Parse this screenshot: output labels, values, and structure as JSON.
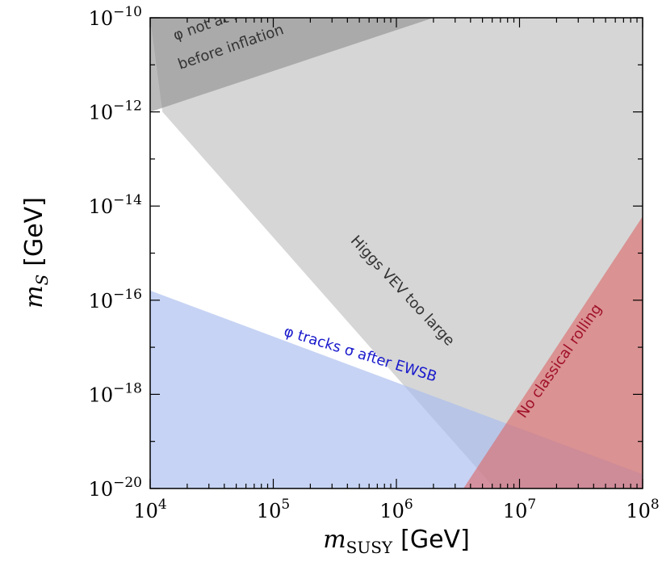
{
  "chart_data": {
    "type": "area",
    "xscale": "log",
    "yscale": "log",
    "xlim": [
      10000,
      100000000
    ],
    "ylim": [
      1e-20,
      1e-10
    ],
    "xlabel": {
      "var": "m",
      "sub": "SUSY",
      "unit": "[GeV]"
    },
    "ylabel": {
      "var": "m",
      "sub": "S",
      "unit": "[GeV]"
    },
    "x_ticks": [
      {
        "value": 10000,
        "base": "10",
        "exp": "4"
      },
      {
        "value": 100000,
        "base": "10",
        "exp": "5"
      },
      {
        "value": 1000000,
        "base": "10",
        "exp": "6"
      },
      {
        "value": 10000000,
        "base": "10",
        "exp": "7"
      },
      {
        "value": 100000000,
        "base": "10",
        "exp": "8"
      }
    ],
    "y_ticks": [
      {
        "value": 1e-20,
        "base": "10",
        "exp": "−20"
      },
      {
        "value": 1e-18,
        "base": "10",
        "exp": "−18"
      },
      {
        "value": 1e-16,
        "base": "10",
        "exp": "−16"
      },
      {
        "value": 1e-14,
        "base": "10",
        "exp": "−14"
      },
      {
        "value": 1e-12,
        "base": "10",
        "exp": "−12"
      },
      {
        "value": 1e-10,
        "base": "10",
        "exp": "−10"
      }
    ],
    "grid": false,
    "regions": [
      {
        "name": "Higgs VEV too large",
        "color": "#cccccc",
        "opacity": 0.8,
        "polygon": [
          [
            10000,
            1e-10
          ],
          [
            100000000,
            1e-10
          ],
          [
            100000000,
            1e-20
          ],
          [
            6300000,
            1e-20
          ],
          [
            12600,
            1e-12
          ]
        ]
      },
      {
        "name": "φ not at rest before inflation",
        "color": "#8c8c8c",
        "opacity": 0.6,
        "polygon": [
          [
            10000,
            1e-10
          ],
          [
            2000000,
            1e-10
          ],
          [
            10000,
            1e-12
          ]
        ]
      },
      {
        "name": "φ tracks σ after EWSB",
        "color": "#a7bcee",
        "opacity": 0.65,
        "polygon": [
          [
            10000,
            1.6e-16
          ],
          [
            100000000,
            2e-20
          ],
          [
            100000000,
            1e-20
          ],
          [
            10000,
            1e-20
          ]
        ]
      },
      {
        "name": "No classical rolling",
        "color": "#dc6464",
        "opacity": 0.6,
        "polygon": [
          [
            3500000,
            1e-20
          ],
          [
            100000000,
            6e-15
          ],
          [
            100000000,
            1e-20
          ]
        ]
      }
    ],
    "annotations": [
      {
        "key": "not_at_rest_1",
        "text": "φ not at rest",
        "x": 16000,
        "y": 3.3e-11,
        "angle": -19,
        "color": "#333333"
      },
      {
        "key": "not_at_rest_2",
        "text": "before inflation",
        "x": 17500,
        "y": 8e-12,
        "angle": -19,
        "color": "#333333"
      },
      {
        "key": "higgs_vev",
        "text": "Higgs VEV too large",
        "x": 420000,
        "y": 1.8e-15,
        "angle": 47,
        "color": "#333333"
      },
      {
        "key": "tracks",
        "text": "φ tracks σ after EWSB",
        "x": 120000,
        "y": 1.8e-17,
        "angle": 17,
        "color": "#1a1acc"
      },
      {
        "key": "no_classical",
        "text": "No classical rolling",
        "x": 11000000,
        "y": 3e-19,
        "angle": -55,
        "color": "#a0102a"
      }
    ]
  }
}
